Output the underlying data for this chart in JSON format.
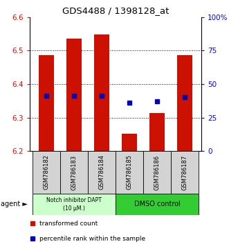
{
  "title": "GDS4488 / 1398128_at",
  "samples": [
    "GSM786182",
    "GSM786183",
    "GSM786184",
    "GSM786185",
    "GSM786186",
    "GSM786187"
  ],
  "bar_bottoms": [
    6.2,
    6.2,
    6.2,
    6.2,
    6.2,
    6.2
  ],
  "bar_tops": [
    6.487,
    6.535,
    6.548,
    6.252,
    6.313,
    6.487
  ],
  "percentile_values": [
    6.365,
    6.365,
    6.365,
    6.345,
    6.348,
    6.362
  ],
  "bar_color": "#cc1100",
  "percentile_color": "#0000bb",
  "ylim": [
    6.2,
    6.6
  ],
  "yticks_left": [
    6.2,
    6.3,
    6.4,
    6.5,
    6.6
  ],
  "yticks_right_vals": [
    0,
    25,
    50,
    75,
    100
  ],
  "yticks_right_labels": [
    "0",
    "25",
    "50",
    "75",
    "100%"
  ],
  "group1_label": "Notch inhibitor DAPT\n(10 μM.)",
  "group2_label": "DMSO control",
  "group1_color": "#ccffcc",
  "group2_color": "#33cc33",
  "agent_label": "agent",
  "legend1": "transformed count",
  "legend2": "percentile rank within the sample",
  "bar_width": 0.55
}
